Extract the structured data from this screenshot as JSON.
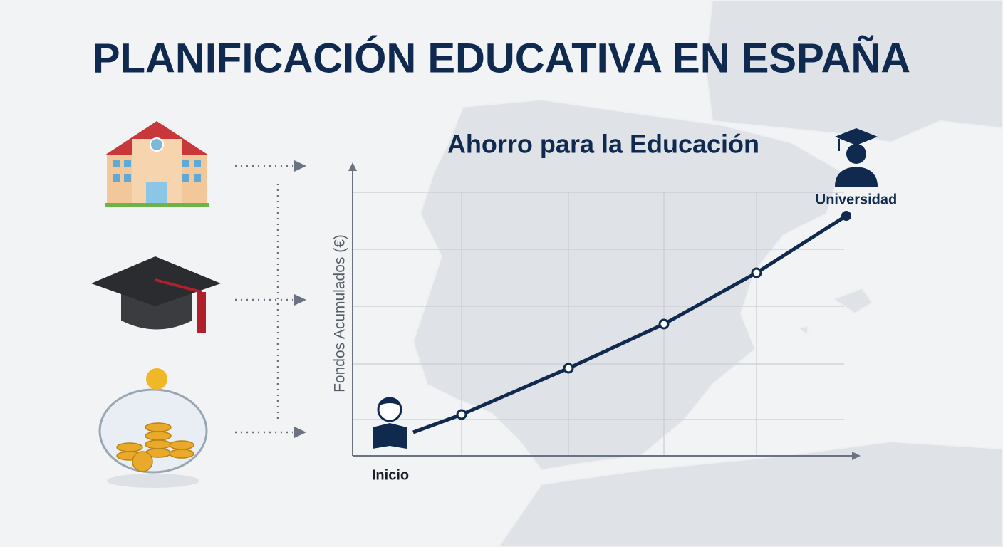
{
  "header": {
    "title": "PLANIFICACIÓN EDUCATIVA EN ESPAÑA"
  },
  "chart": {
    "title": "Ahorro para la Educación",
    "y_label": "Fondos Acumulados (€)",
    "start_label": "Inicio",
    "end_label": "Universidad"
  }
}
